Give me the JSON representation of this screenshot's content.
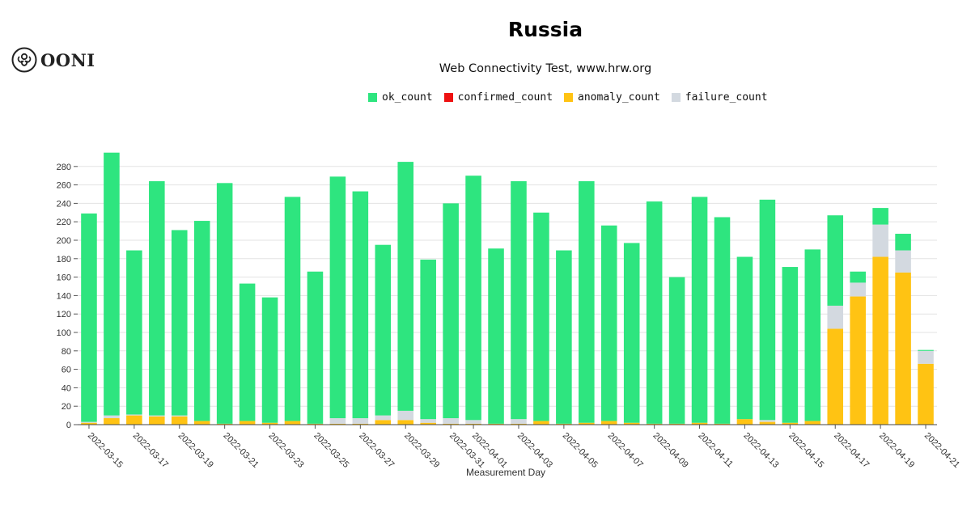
{
  "header": {
    "logo_text": "OONI",
    "title": "Russia",
    "subtitle": "Web Connectivity Test, www.hrw.org"
  },
  "colors": {
    "ok": "#2ee57f",
    "confirmed": "#ee1111",
    "anomaly": "#ffc313",
    "failure": "#d3d9e0"
  },
  "legend": [
    {
      "key": "ok",
      "label": "ok_count"
    },
    {
      "key": "confirmed",
      "label": "confirmed_count"
    },
    {
      "key": "anomaly",
      "label": "anomaly_count"
    },
    {
      "key": "failure",
      "label": "failure_count"
    }
  ],
  "chart_data": {
    "type": "bar",
    "stacked": true,
    "title": "Russia",
    "subtitle": "Web Connectivity Test, www.hrw.org",
    "xlabel": "Measurement Day",
    "ylabel": "",
    "ylim": [
      0,
      300
    ],
    "yticks": [
      0,
      20,
      40,
      60,
      80,
      100,
      120,
      140,
      160,
      180,
      200,
      220,
      240,
      260,
      280
    ],
    "grid": true,
    "legend_position": "top-center",
    "categories": [
      "2022-03-15",
      "2022-03-16",
      "2022-03-17",
      "2022-03-18",
      "2022-03-19",
      "2022-03-20",
      "2022-03-21",
      "2022-03-22",
      "2022-03-23",
      "2022-03-24",
      "2022-03-25",
      "2022-03-26",
      "2022-03-27",
      "2022-03-28",
      "2022-03-29",
      "2022-03-30",
      "2022-03-31",
      "2022-04-01",
      "2022-04-02",
      "2022-04-03",
      "2022-04-04",
      "2022-04-05",
      "2022-04-06",
      "2022-04-07",
      "2022-04-08",
      "2022-04-09",
      "2022-04-10",
      "2022-04-11",
      "2022-04-12",
      "2022-04-13",
      "2022-04-14",
      "2022-04-15",
      "2022-04-16",
      "2022-04-17",
      "2022-04-18",
      "2022-04-19",
      "2022-04-20",
      "2022-04-21"
    ],
    "tick_labels": [
      "2022-03-15",
      "2022-03-17",
      "2022-03-19",
      "2022-03-21",
      "2022-03-23",
      "2022-03-25",
      "2022-03-27",
      "2022-03-29",
      "2022-03-31",
      "2022-04-01",
      "2022-04-03",
      "2022-04-05",
      "2022-04-07",
      "2022-04-09",
      "2022-04-11",
      "2022-04-13",
      "2022-04-15",
      "2022-04-17",
      "2022-04-19",
      "2022-04-21"
    ],
    "series": [
      {
        "name": "anomaly_count",
        "key": "anomaly",
        "values": [
          2,
          7,
          10,
          9,
          9,
          4,
          1,
          4,
          2,
          4,
          1,
          1,
          1,
          5,
          5,
          2,
          1,
          1,
          1,
          1,
          4,
          1,
          2,
          4,
          2,
          1,
          1,
          2,
          1,
          6,
          3,
          2,
          4,
          104,
          139,
          182,
          165,
          66
        ]
      },
      {
        "name": "failure_count",
        "key": "failure",
        "values": [
          1,
          3,
          1,
          1,
          1,
          0,
          0,
          0,
          0,
          0,
          0,
          6,
          6,
          5,
          10,
          4,
          6,
          4,
          0,
          5,
          0,
          0,
          0,
          0,
          0,
          0,
          0,
          0,
          0,
          0,
          2,
          0,
          0,
          25,
          15,
          35,
          24,
          14
        ]
      },
      {
        "name": "confirmed_count",
        "key": "confirmed",
        "values": [
          0,
          0,
          0,
          0,
          0,
          0,
          0,
          0,
          0,
          0,
          0,
          0,
          0,
          0,
          0,
          0,
          0,
          0,
          0,
          0,
          0,
          0,
          0,
          0,
          0,
          0,
          0,
          0,
          0,
          0,
          0,
          0,
          0,
          0,
          0,
          0,
          0,
          0
        ]
      },
      {
        "name": "ok_count",
        "key": "ok",
        "values": [
          226,
          285,
          178,
          254,
          201,
          217,
          261,
          149,
          136,
          243,
          165,
          262,
          246,
          185,
          270,
          173,
          233,
          265,
          190,
          258,
          226,
          188,
          262,
          212,
          195,
          241,
          159,
          245,
          224,
          176,
          239,
          169,
          186,
          98,
          12,
          18,
          18,
          1
        ]
      }
    ]
  }
}
